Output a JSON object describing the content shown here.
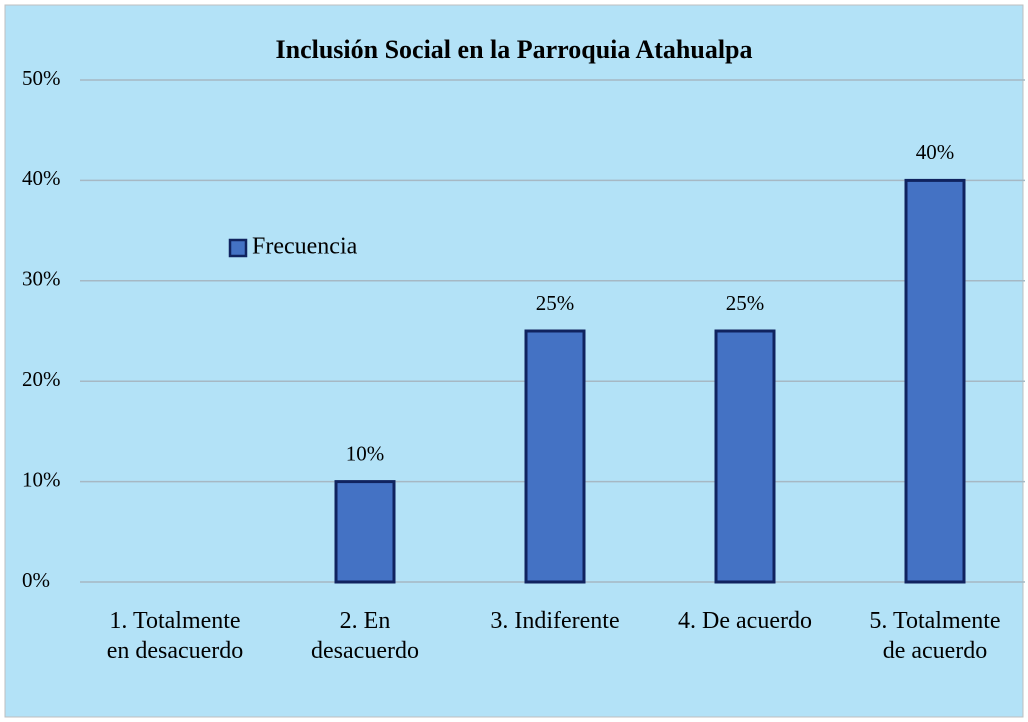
{
  "chart_data": {
    "type": "bar",
    "title": "Inclusión Social en la Parroquia Atahualpa",
    "categories": [
      "1. Totalmente\nen desacuerdo",
      "2. En\ndesacuerdo",
      "3. Indiferente",
      "4. De acuerdo",
      "5. Totalmente\nde acuerdo"
    ],
    "series": [
      {
        "name": "Frecuencia",
        "color": "#4472c4",
        "values": [
          0,
          10,
          25,
          25,
          40
        ],
        "value_labels": [
          null,
          "10%",
          "25%",
          "25%",
          "40%"
        ]
      }
    ],
    "ylim": [
      0,
      50
    ],
    "yticks": [
      {
        "value": 0,
        "label": "0%"
      },
      {
        "value": 10,
        "label": "10%"
      },
      {
        "value": 20,
        "label": "20%"
      },
      {
        "value": 30,
        "label": "30%"
      },
      {
        "value": 40,
        "label": "40%"
      },
      {
        "value": 50,
        "label": "50%"
      }
    ],
    "grid": true,
    "legend": "top-left"
  }
}
